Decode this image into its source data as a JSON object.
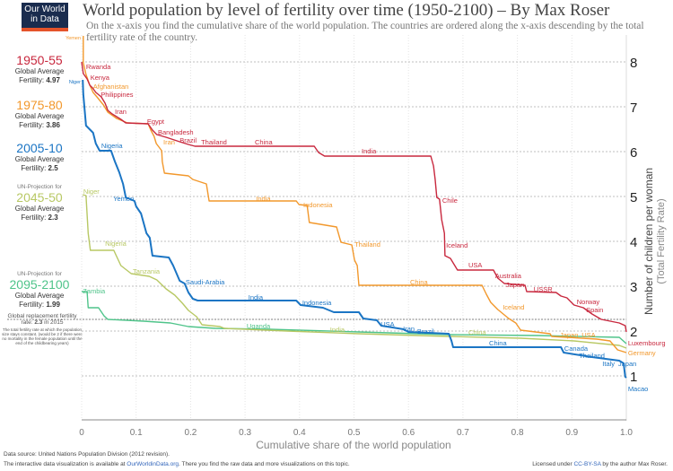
{
  "logo": {
    "line1": "Our World",
    "line2": "in Data"
  },
  "title": "World population by level of fertility over time (1950-2100) – By Max Roser",
  "subtitle": "On the x-axis you find the cumulative share of the world population. The countries are ordered along the x-axis descending by the total fertility rate of the country.",
  "legend": [
    {
      "pre": "",
      "period": "1950-55",
      "label": "Global Average",
      "fert_label": "Fertility: ",
      "value": "4.97",
      "color": "#c8283e"
    },
    {
      "pre": "",
      "period": "1975-80",
      "label": "Global Average",
      "fert_label": "Fertility: ",
      "value": "3.86",
      "color": "#f2982c"
    },
    {
      "pre": "",
      "period": "2005-10",
      "label": "Global Average",
      "fert_label": "Fertility: ",
      "value": "2.5",
      "color": "#1b75c4"
    },
    {
      "pre": "UN-Projection for",
      "period": "2045-50",
      "label": "Global Average",
      "fert_label": "Fertility: ",
      "value": "2.3",
      "color": "#b8c864"
    },
    {
      "pre": "UN-Projection for",
      "period": "2095-2100",
      "label": "Global Average",
      "fert_label": "Fertility: ",
      "value": "1.99",
      "color": "#4fc48a"
    }
  ],
  "replacement": {
    "line1": "Global replacement fertility",
    "line2a": "rate: ",
    "value": "2.3",
    "line2b": " in 2015",
    "note": "The total fertility rate at which the population size stays constant. (would be 2 if there were no mortality in the female population until the end of the childbearing years)"
  },
  "footer": {
    "source": "Data source: United Nations Population Division (2012 revision).",
    "interactive_a": "The interactive data visualization is available at ",
    "link": "OurWorldinData.org",
    "interactive_b": ". There you find the raw data and more visualizations on this topic.",
    "license_a": "Licensed under ",
    "license_link": "CC-BY-SA",
    "license_b": " by the author Max Roser."
  },
  "chart_data": {
    "type": "line",
    "xlabel": "Cumulative share of the world population",
    "ylabel": "Number of children per woman",
    "ylabel2": "(Total Fertility Rate)",
    "xlim": [
      0,
      1
    ],
    "ylim": [
      0,
      8.6
    ],
    "xticks": [
      "0",
      "0.1",
      "0.2",
      "0.3",
      "0.4",
      "0.5",
      "0.6",
      "0.7",
      "0.8",
      "0.9",
      "1.0"
    ],
    "yticks": [
      1,
      2,
      3,
      4,
      5,
      6,
      7,
      8
    ],
    "replacement_rate": 2.3,
    "grid": true,
    "series": [
      {
        "name": "1950-55",
        "color": "#c8283e",
        "points": [
          [
            0,
            8.0
          ],
          [
            0.003,
            7.74
          ],
          [
            0.01,
            7.62
          ],
          [
            0.015,
            7.48
          ],
          [
            0.02,
            7.42
          ],
          [
            0.026,
            7.32
          ],
          [
            0.036,
            7.22
          ],
          [
            0.043,
            7.08
          ],
          [
            0.048,
            6.92
          ],
          [
            0.056,
            6.84
          ],
          [
            0.072,
            6.72
          ],
          [
            0.081,
            6.64
          ],
          [
            0.122,
            6.62
          ],
          [
            0.13,
            6.48
          ],
          [
            0.138,
            6.38
          ],
          [
            0.155,
            6.32
          ],
          [
            0.18,
            6.22
          ],
          [
            0.196,
            6.16
          ],
          [
            0.208,
            6.12
          ],
          [
            0.427,
            6.12
          ],
          [
            0.435,
            5.98
          ],
          [
            0.446,
            5.9
          ],
          [
            0.641,
            5.9
          ],
          [
            0.646,
            5.68
          ],
          [
            0.649,
            5.38
          ],
          [
            0.652,
            4.98
          ],
          [
            0.657,
            4.94
          ],
          [
            0.661,
            4.48
          ],
          [
            0.666,
            4.18
          ],
          [
            0.667,
            3.68
          ],
          [
            0.677,
            3.62
          ],
          [
            0.685,
            3.46
          ],
          [
            0.69,
            3.36
          ],
          [
            0.756,
            3.36
          ],
          [
            0.764,
            3.18
          ],
          [
            0.776,
            3.06
          ],
          [
            0.814,
            3.02
          ],
          [
            0.817,
            2.88
          ],
          [
            0.871,
            2.86
          ],
          [
            0.88,
            2.78
          ],
          [
            0.891,
            2.74
          ],
          [
            0.904,
            2.58
          ],
          [
            0.921,
            2.52
          ],
          [
            0.937,
            2.38
          ],
          [
            0.954,
            2.26
          ],
          [
            0.987,
            2.18
          ],
          [
            0.998,
            2.12
          ],
          [
            1.0,
            1.98
          ]
        ],
        "labels": [
          [
            "Rwanda",
            0.008,
            7.84
          ],
          [
            "Kenya",
            0.016,
            7.54
          ],
          [
            "Philippines",
            0.035,
            7.22
          ],
          [
            "Iran",
            0.061,
            6.84
          ],
          [
            "Egypt",
            0.12,
            6.62
          ],
          [
            "Bangladesh",
            0.14,
            6.38
          ],
          [
            "Brazil",
            0.18,
            6.2
          ],
          [
            "Thailand",
            0.211,
            6.16
          ],
          [
            "China",
            0.318,
            6.16
          ],
          [
            "India",
            0.514,
            5.96
          ],
          [
            "Chile",
            0.662,
            4.86
          ],
          [
            "Iceland",
            0.669,
            3.86
          ],
          [
            "USA",
            0.71,
            3.42
          ],
          [
            "Australia",
            0.759,
            3.18
          ],
          [
            "Japan",
            0.779,
            3.04
          ],
          [
            "USSR",
            0.83,
            2.88
          ],
          [
            "Norway",
            0.909,
            2.6
          ],
          [
            "Spain",
            0.926,
            2.46
          ],
          [
            "Luxembourg",
            1.003,
            1.86
          ]
        ]
      },
      {
        "name": "1975-80",
        "color": "#f2982c",
        "points": [
          [
            0.003,
            8.58
          ],
          [
            0.003,
            7.98
          ],
          [
            0.008,
            7.72
          ],
          [
            0.015,
            7.48
          ],
          [
            0.021,
            7.32
          ],
          [
            0.028,
            7.22
          ],
          [
            0.04,
            7.04
          ],
          [
            0.048,
            6.88
          ],
          [
            0.064,
            6.74
          ],
          [
            0.084,
            6.64
          ],
          [
            0.122,
            6.62
          ],
          [
            0.127,
            6.48
          ],
          [
            0.133,
            6.34
          ],
          [
            0.137,
            6.18
          ],
          [
            0.147,
            6.02
          ],
          [
            0.148,
            5.78
          ],
          [
            0.152,
            5.52
          ],
          [
            0.196,
            5.46
          ],
          [
            0.204,
            5.38
          ],
          [
            0.229,
            5.28
          ],
          [
            0.234,
            4.9
          ],
          [
            0.394,
            4.9
          ],
          [
            0.399,
            4.82
          ],
          [
            0.414,
            4.8
          ],
          [
            0.418,
            4.42
          ],
          [
            0.468,
            4.32
          ],
          [
            0.476,
            3.98
          ],
          [
            0.496,
            3.92
          ],
          [
            0.501,
            3.58
          ],
          [
            0.506,
            3.46
          ],
          [
            0.509,
            3.02
          ],
          [
            0.735,
            3.02
          ],
          [
            0.743,
            2.82
          ],
          [
            0.751,
            2.64
          ],
          [
            0.764,
            2.48
          ],
          [
            0.784,
            2.28
          ],
          [
            0.797,
            2.18
          ],
          [
            0.806,
            2.02
          ],
          [
            0.86,
            1.94
          ],
          [
            0.863,
            1.88
          ],
          [
            0.946,
            1.82
          ],
          [
            0.97,
            1.78
          ],
          [
            0.984,
            1.58
          ],
          [
            1.0,
            1.52
          ]
        ],
        "labels": [
          [
            "Yemen",
            -0.031,
            8.5
          ],
          [
            "Afghanistan",
            0.021,
            7.4
          ],
          [
            "Iran",
            0.15,
            6.16
          ],
          [
            "India",
            0.32,
            4.9
          ],
          [
            "Indonesia",
            0.407,
            4.76
          ],
          [
            "Thailand",
            0.501,
            3.88
          ],
          [
            "China",
            0.603,
            3.04
          ],
          [
            "Iceland",
            0.773,
            2.48
          ],
          [
            "Japan",
            0.878,
            1.86
          ],
          [
            "USA",
            0.918,
            1.86
          ],
          [
            "Germany",
            1.003,
            1.46
          ]
        ]
      },
      {
        "name": "2005-10",
        "color": "#1b75c4",
        "points": [
          [
            0.002,
            7.6
          ],
          [
            0.003,
            7.28
          ],
          [
            0.008,
            6.58
          ],
          [
            0.021,
            6.42
          ],
          [
            0.026,
            6.18
          ],
          [
            0.033,
            6.02
          ],
          [
            0.054,
            6.02
          ],
          [
            0.061,
            5.78
          ],
          [
            0.069,
            5.54
          ],
          [
            0.076,
            5.28
          ],
          [
            0.081,
            4.98
          ],
          [
            0.097,
            4.9
          ],
          [
            0.1,
            4.78
          ],
          [
            0.109,
            4.62
          ],
          [
            0.119,
            4.18
          ],
          [
            0.125,
            4.08
          ],
          [
            0.13,
            3.68
          ],
          [
            0.16,
            3.64
          ],
          [
            0.168,
            3.46
          ],
          [
            0.18,
            3.12
          ],
          [
            0.189,
            3.06
          ],
          [
            0.196,
            2.86
          ],
          [
            0.204,
            2.72
          ],
          [
            0.213,
            2.68
          ],
          [
            0.394,
            2.68
          ],
          [
            0.402,
            2.58
          ],
          [
            0.443,
            2.52
          ],
          [
            0.463,
            2.42
          ],
          [
            0.509,
            2.42
          ],
          [
            0.517,
            2.28
          ],
          [
            0.542,
            2.24
          ],
          [
            0.55,
            2.12
          ],
          [
            0.591,
            2.04
          ],
          [
            0.6,
            1.98
          ],
          [
            0.674,
            1.94
          ],
          [
            0.679,
            1.78
          ],
          [
            0.682,
            1.64
          ],
          [
            0.88,
            1.64
          ],
          [
            0.885,
            1.52
          ],
          [
            0.937,
            1.42
          ],
          [
            0.987,
            1.34
          ],
          [
            0.995,
            1.28
          ],
          [
            0.998,
            0.98
          ],
          [
            1.0,
            0.96
          ]
        ],
        "labels": [
          [
            "Niger",
            -0.023,
            7.52
          ],
          [
            "Nigeria",
            0.036,
            6.08
          ],
          [
            "Yemen",
            0.058,
            4.9
          ],
          [
            "Saudi-Arabia",
            0.191,
            3.04
          ],
          [
            "India",
            0.306,
            2.7
          ],
          [
            "Indonesia",
            0.405,
            2.58
          ],
          [
            "USA",
            0.549,
            2.1
          ],
          [
            "Iran",
            0.59,
            2.0
          ],
          [
            "Brazil",
            0.616,
            1.94
          ],
          [
            "China",
            0.748,
            1.68
          ],
          [
            "Canada",
            0.886,
            1.56
          ],
          [
            "Thailand",
            0.913,
            1.46
          ],
          [
            "Italy",
            0.956,
            1.38
          ],
          [
            "Japan",
            0.98,
            1.38
          ],
          [
            "Macao",
            1.003,
            0.82
          ]
        ]
      },
      {
        "name": "2045-50",
        "color": "#b8c864",
        "points": [
          [
            0.002,
            5.04
          ],
          [
            0.008,
            5.02
          ],
          [
            0.012,
            4.18
          ],
          [
            0.016,
            3.8
          ],
          [
            0.059,
            3.8
          ],
          [
            0.072,
            3.46
          ],
          [
            0.091,
            3.28
          ],
          [
            0.124,
            3.22
          ],
          [
            0.138,
            3.14
          ],
          [
            0.155,
            2.94
          ],
          [
            0.171,
            2.8
          ],
          [
            0.185,
            2.62
          ],
          [
            0.196,
            2.46
          ],
          [
            0.211,
            2.32
          ],
          [
            0.221,
            2.14
          ],
          [
            0.254,
            2.1
          ],
          [
            0.262,
            2.06
          ],
          [
            0.377,
            2.0
          ],
          [
            0.509,
            1.94
          ],
          [
            0.674,
            1.88
          ],
          [
            0.806,
            1.84
          ],
          [
            0.904,
            1.78
          ],
          [
            0.987,
            1.68
          ],
          [
            1.0,
            1.62
          ]
        ],
        "labels": [
          [
            "Niger",
            0.003,
            5.06
          ],
          [
            "Nigeria",
            0.043,
            3.9
          ],
          [
            "Tanzania",
            0.094,
            3.28
          ],
          [
            "India",
            0.456,
            1.98
          ],
          [
            "China",
            0.71,
            1.92
          ]
        ]
      },
      {
        "name": "2095-2100",
        "color": "#4fc48a",
        "points": [
          [
            0,
            2.88
          ],
          [
            0.01,
            2.88
          ],
          [
            0.012,
            2.52
          ],
          [
            0.031,
            2.52
          ],
          [
            0.041,
            2.34
          ],
          [
            0.048,
            2.26
          ],
          [
            0.114,
            2.22
          ],
          [
            0.163,
            2.18
          ],
          [
            0.196,
            2.1
          ],
          [
            0.245,
            2.06
          ],
          [
            0.344,
            2.04
          ],
          [
            0.509,
            1.98
          ],
          [
            0.674,
            1.92
          ],
          [
            0.839,
            1.9
          ],
          [
            0.987,
            1.86
          ],
          [
            1.0,
            1.72
          ]
        ],
        "labels": [
          [
            "Zambia",
            0.002,
            2.84
          ],
          [
            "Uganda",
            0.303,
            2.06
          ]
        ]
      }
    ]
  }
}
